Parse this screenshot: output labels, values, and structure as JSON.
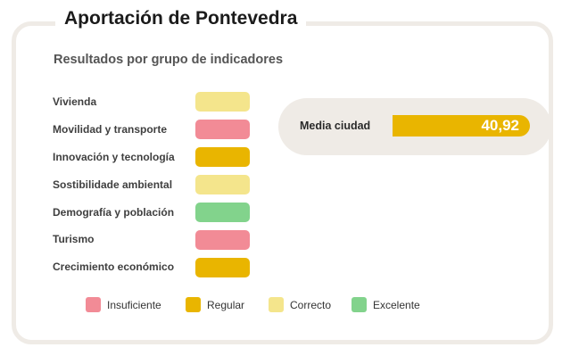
{
  "title": "Aportación de Pontevedra",
  "subtitle": "Resultados por grupo de indicadores",
  "colors": {
    "insuficiente": "#f28b96",
    "regular": "#e9b500",
    "correcto": "#f4e58c",
    "excelente": "#82d38c",
    "panel": "#efebe6"
  },
  "indicators": [
    {
      "label": "Vivienda",
      "rating": "correcto"
    },
    {
      "label": "Movilidad y transporte",
      "rating": "insuficiente"
    },
    {
      "label": "Innovación y tecnología",
      "rating": "regular"
    },
    {
      "label": "Sostibilidade ambiental",
      "rating": "correcto"
    },
    {
      "label": "Demografía y población",
      "rating": "excelente"
    },
    {
      "label": "Turismo",
      "rating": "insuficiente"
    },
    {
      "label": "Crecimiento económico",
      "rating": "regular"
    }
  ],
  "media": {
    "label": "Media ciudad",
    "value": "40,92"
  },
  "legend": [
    {
      "label": "Insuficiente",
      "rating": "insuficiente"
    },
    {
      "label": "Regular",
      "rating": "regular"
    },
    {
      "label": "Correcto",
      "rating": "correcto"
    },
    {
      "label": "Excelente",
      "rating": "excelente"
    }
  ]
}
